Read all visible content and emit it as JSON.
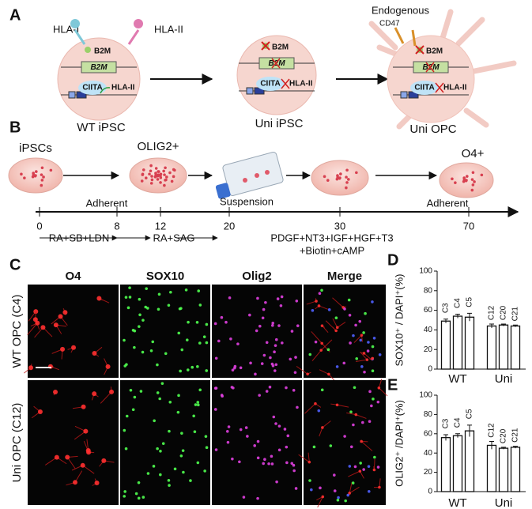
{
  "panel_a": {
    "label": "A",
    "hla_i": "HLA-I",
    "hla_ii": "HLA-II",
    "endogenous": "Endogenous",
    "cd47": "CD47",
    "cells": [
      {
        "protein": "B2M",
        "gene": "B2M",
        "ciita": "CIITA",
        "hla": "HLA-II",
        "name": "WT iPSC"
      },
      {
        "protein": "B2M",
        "gene": "B2M",
        "ciita": "CIITA",
        "hla": "HLA-II",
        "name": "Uni iPSC"
      },
      {
        "protein": "B2M",
        "gene": "B2M",
        "ciita": "CIITA",
        "hla": "HLA-II",
        "name": "Uni OPC"
      }
    ]
  },
  "panel_b": {
    "label": "B",
    "stages": [
      "iPSCs",
      "OLIG2+",
      "O4+"
    ],
    "phases": [
      "Adherent",
      "Suspension",
      "Adherent"
    ],
    "days": [
      0,
      8,
      12,
      20,
      30,
      70
    ],
    "media": [
      "RA+SB+LDN",
      "RA+SAG",
      "PDGF+NT3+IGF+HGF+T3",
      "+Biotin+cAMP"
    ]
  },
  "panel_c": {
    "label": "C",
    "channels": [
      "O4",
      "SOX10",
      "Olig2",
      "Merge"
    ],
    "rows": [
      "WT OPC (C4)",
      "Uni OPC (C12)"
    ]
  },
  "panel_d": {
    "label": "D",
    "ylabel": "SOX10⁺ / DAPI⁺(%)",
    "categories": [
      "C3",
      "C4",
      "C5",
      "C12",
      "C20",
      "C21"
    ],
    "groups": [
      "WT",
      "Uni"
    ],
    "values": [
      49,
      54,
      53,
      44,
      45,
      44
    ],
    "errors": [
      2,
      2,
      4,
      2,
      1,
      1
    ],
    "ylim": [
      0,
      100
    ],
    "yticks": [
      0,
      20,
      40,
      60,
      80,
      100
    ]
  },
  "panel_e": {
    "label": "E",
    "ylabel": "OLIG2⁺ /DAPI⁺(%)",
    "categories": [
      "C3",
      "C4",
      "C5",
      "C12",
      "C20",
      "C21"
    ],
    "groups": [
      "WT",
      "Uni"
    ],
    "values": [
      56,
      58,
      63,
      48,
      45,
      46
    ],
    "errors": [
      3,
      2,
      6,
      4,
      1,
      1
    ],
    "ylim": [
      0,
      100
    ],
    "yticks": [
      0,
      20,
      40,
      60,
      80,
      100
    ]
  }
}
